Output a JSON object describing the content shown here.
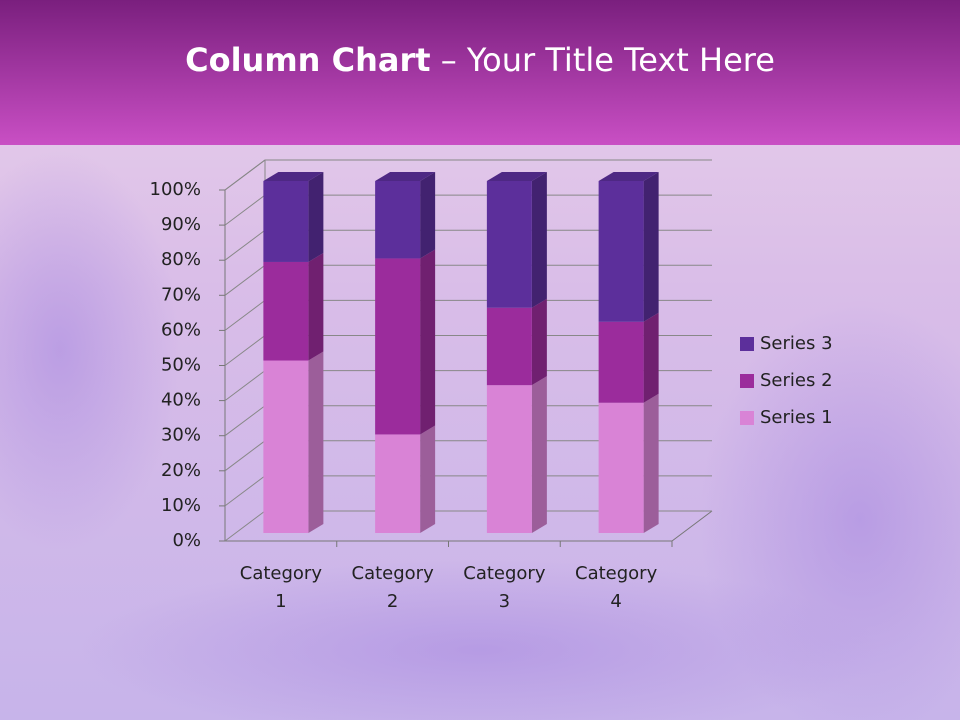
{
  "chart_data": {
    "type": "stacked-bar-3d",
    "title_parts": [
      "Column Chart",
      "– Your Title Text Here"
    ],
    "categories": [
      "Category 1",
      "Category 2",
      "Category 3",
      "Category 4"
    ],
    "series": [
      {
        "name": "Series 1",
        "color": "#d983d6",
        "values": [
          49,
          28,
          42,
          37
        ]
      },
      {
        "name": "Series 2",
        "color": "#9b2c9c",
        "values": [
          28,
          50,
          22,
          23
        ]
      },
      {
        "name": "Series 3",
        "color": "#5c2f9b",
        "values": [
          23,
          22,
          36,
          40
        ]
      }
    ],
    "ylim": [
      0,
      100
    ],
    "yticks": [
      {
        "value": 0,
        "label": "0%"
      },
      {
        "value": 10,
        "label": "10%"
      },
      {
        "value": 20,
        "label": "20%"
      },
      {
        "value": 30,
        "label": "30%"
      },
      {
        "value": 40,
        "label": "40%"
      },
      {
        "value": 50,
        "label": "50%"
      },
      {
        "value": 60,
        "label": "60%"
      },
      {
        "value": 70,
        "label": "70%"
      },
      {
        "value": 80,
        "label": "80%"
      },
      {
        "value": 90,
        "label": "90%"
      },
      {
        "value": 100,
        "label": "100%"
      }
    ],
    "grid": true,
    "legend": "right"
  }
}
